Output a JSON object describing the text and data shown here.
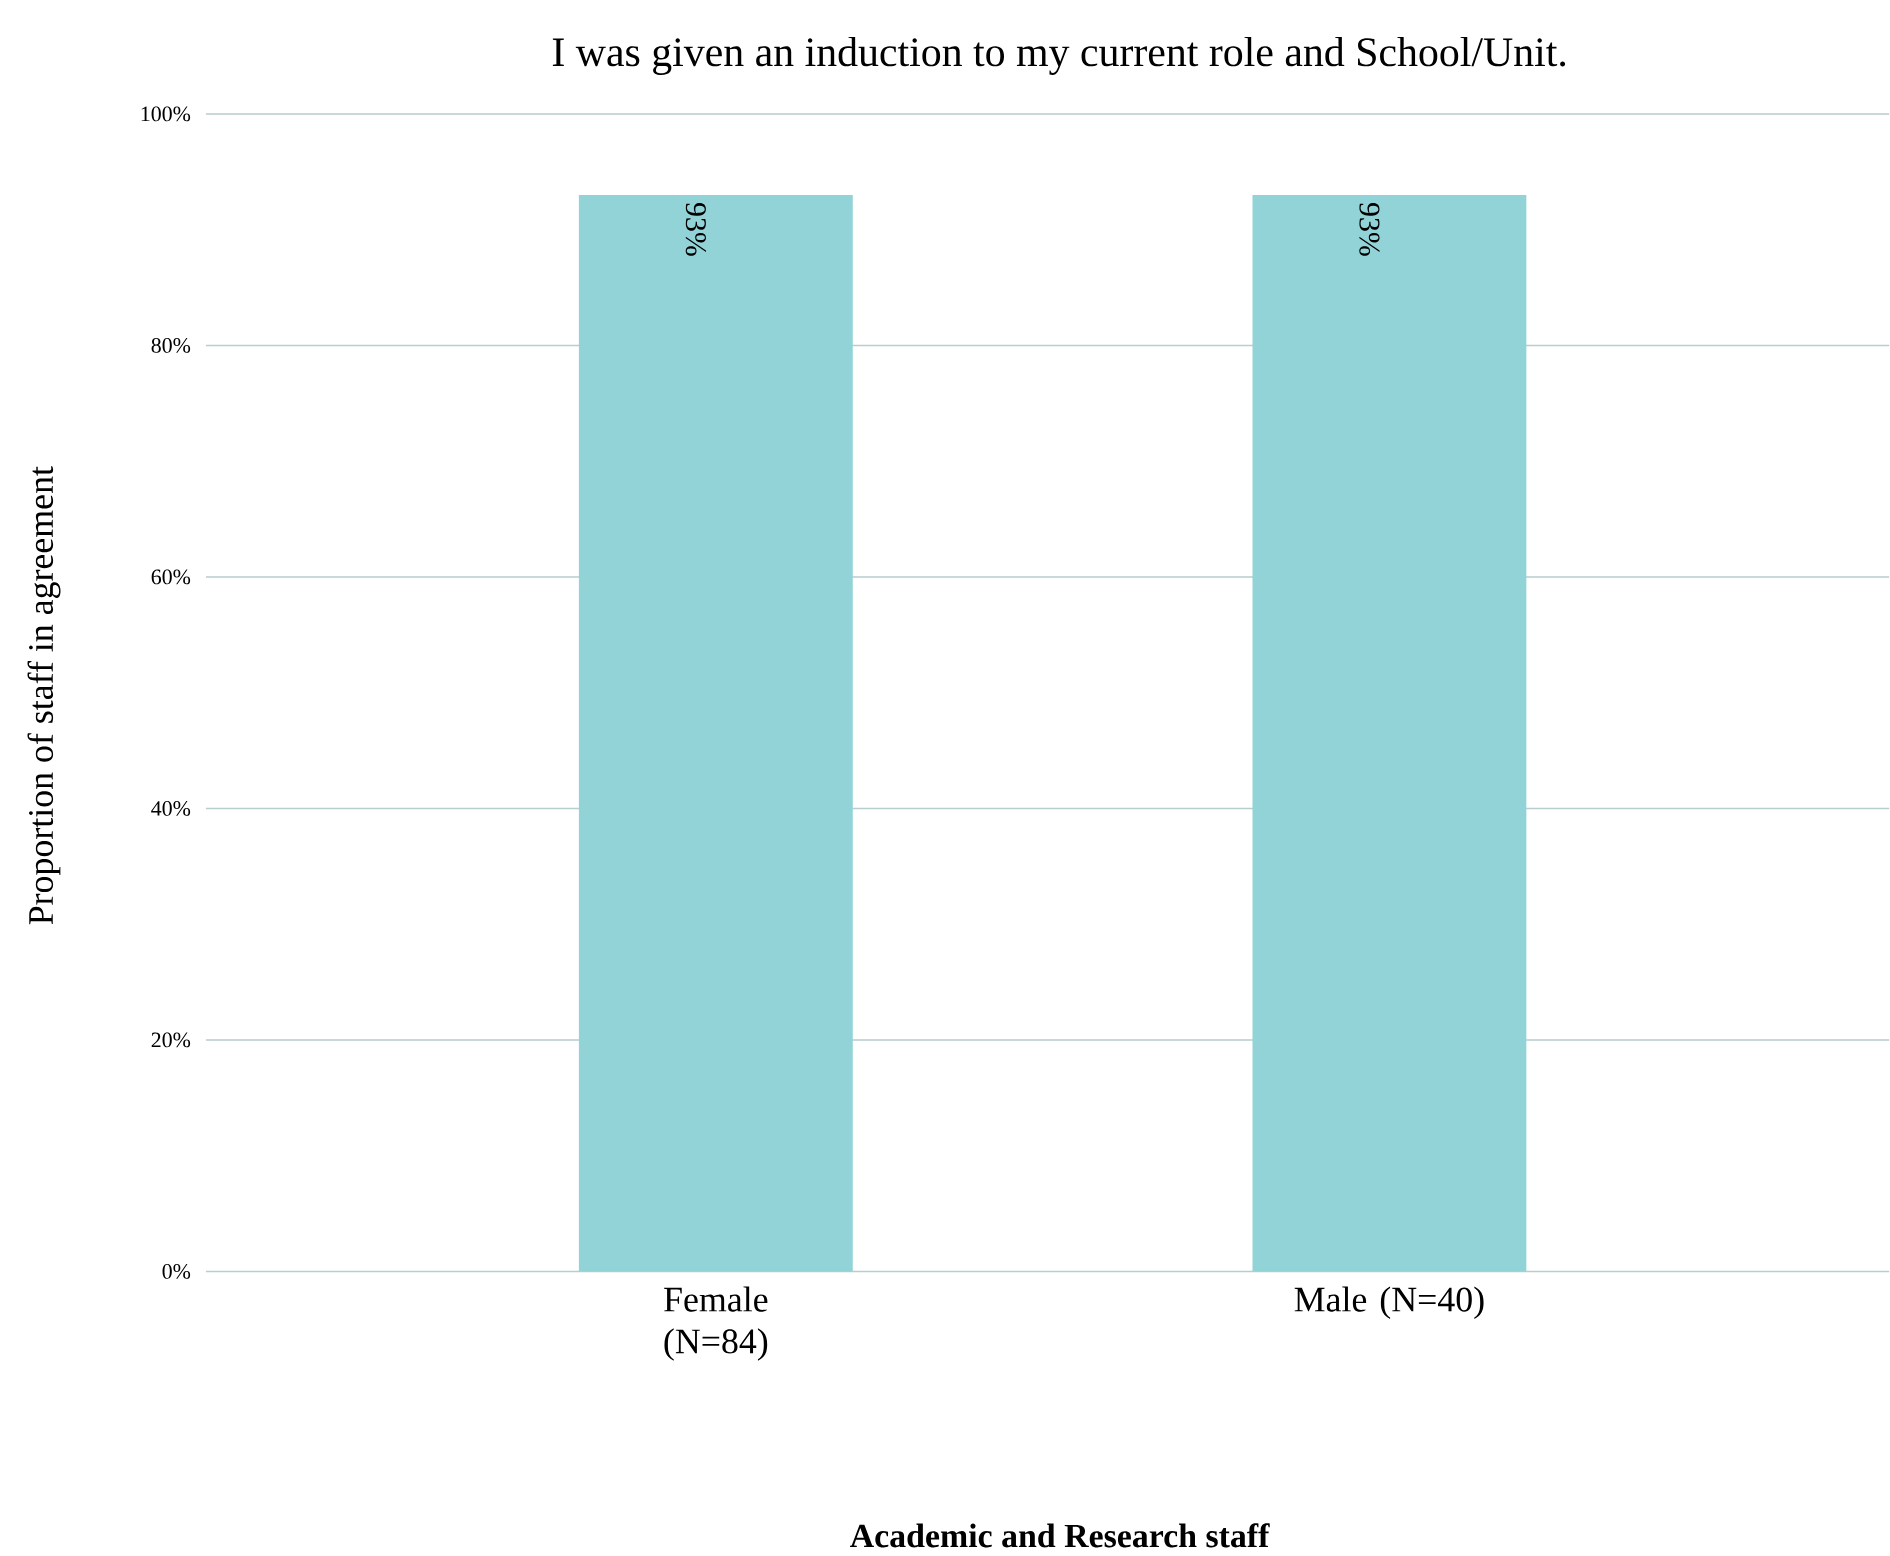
{
  "chart_data": {
    "type": "bar",
    "title": "I was given an induction to my current role and School/Unit.",
    "xlabel": "Academic and Research staff",
    "ylabel": "Proportion of staff in agreement",
    "categories": [
      "Female (N=84)",
      "Male (N=40)"
    ],
    "values": [
      93,
      93
    ],
    "value_labels": [
      "93%",
      "93%"
    ],
    "color": "#92d3d8",
    "ylim": [
      0,
      100
    ],
    "yticks": [
      {
        "value": 0,
        "label": "0%"
      },
      {
        "value": 20,
        "label": "20%"
      },
      {
        "value": 40,
        "label": "40%"
      },
      {
        "value": 60,
        "label": "60%"
      },
      {
        "value": 80,
        "label": "80%"
      },
      {
        "value": 100,
        "label": "100%"
      }
    ],
    "grid": "y"
  }
}
